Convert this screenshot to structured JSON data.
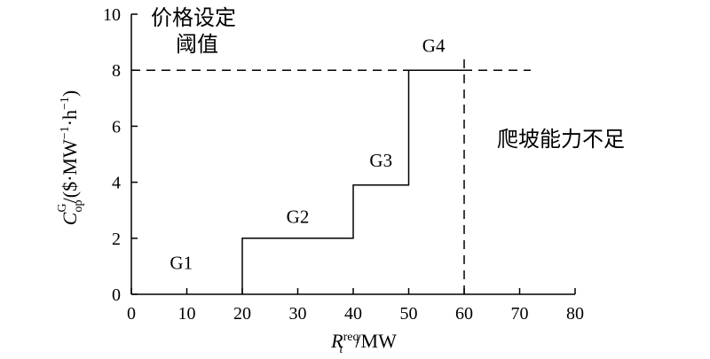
{
  "chart_data": {
    "type": "line",
    "x_ticks": [
      "0",
      "10",
      "20",
      "30",
      "40",
      "50",
      "60",
      "70",
      "80"
    ],
    "y_ticks": [
      "0",
      "2",
      "4",
      "6",
      "8",
      "10"
    ],
    "xlim": [
      0,
      80
    ],
    "ylim": [
      0,
      10
    ],
    "xlabel": {
      "main": "R",
      "sub": "t",
      "sup": "req",
      "unit": "/MW"
    },
    "ylabel": {
      "main": "C",
      "sub": "op",
      "sup": "G",
      "unit": "/($·MW",
      "unit_mid": "·h",
      "unit_end": ")"
    },
    "step_curve": {
      "x": [
        20,
        20,
        40,
        40,
        50,
        50,
        60
      ],
      "y": [
        0,
        2,
        2,
        3.9,
        3.9,
        8,
        8
      ]
    },
    "price_threshold": {
      "y": 8,
      "x_range": [
        0,
        72
      ],
      "style": "dashed"
    },
    "ramp_limit": {
      "x": 60,
      "y_range": [
        0,
        8.6
      ],
      "style": "dashed"
    },
    "generators": [
      {
        "name": "G1",
        "x": 9,
        "y": 0.9
      },
      {
        "name": "G2",
        "x": 30,
        "y": 2.55
      },
      {
        "name": "G3",
        "x": 45,
        "y": 4.55
      },
      {
        "name": "G4",
        "x": 54.5,
        "y": 8.65
      }
    ],
    "annotations": {
      "price_label_line1": "价格设定",
      "price_label_line2": "阈值",
      "ramp_label": "爬坡能力不足"
    },
    "grid": false,
    "legend": "none"
  }
}
